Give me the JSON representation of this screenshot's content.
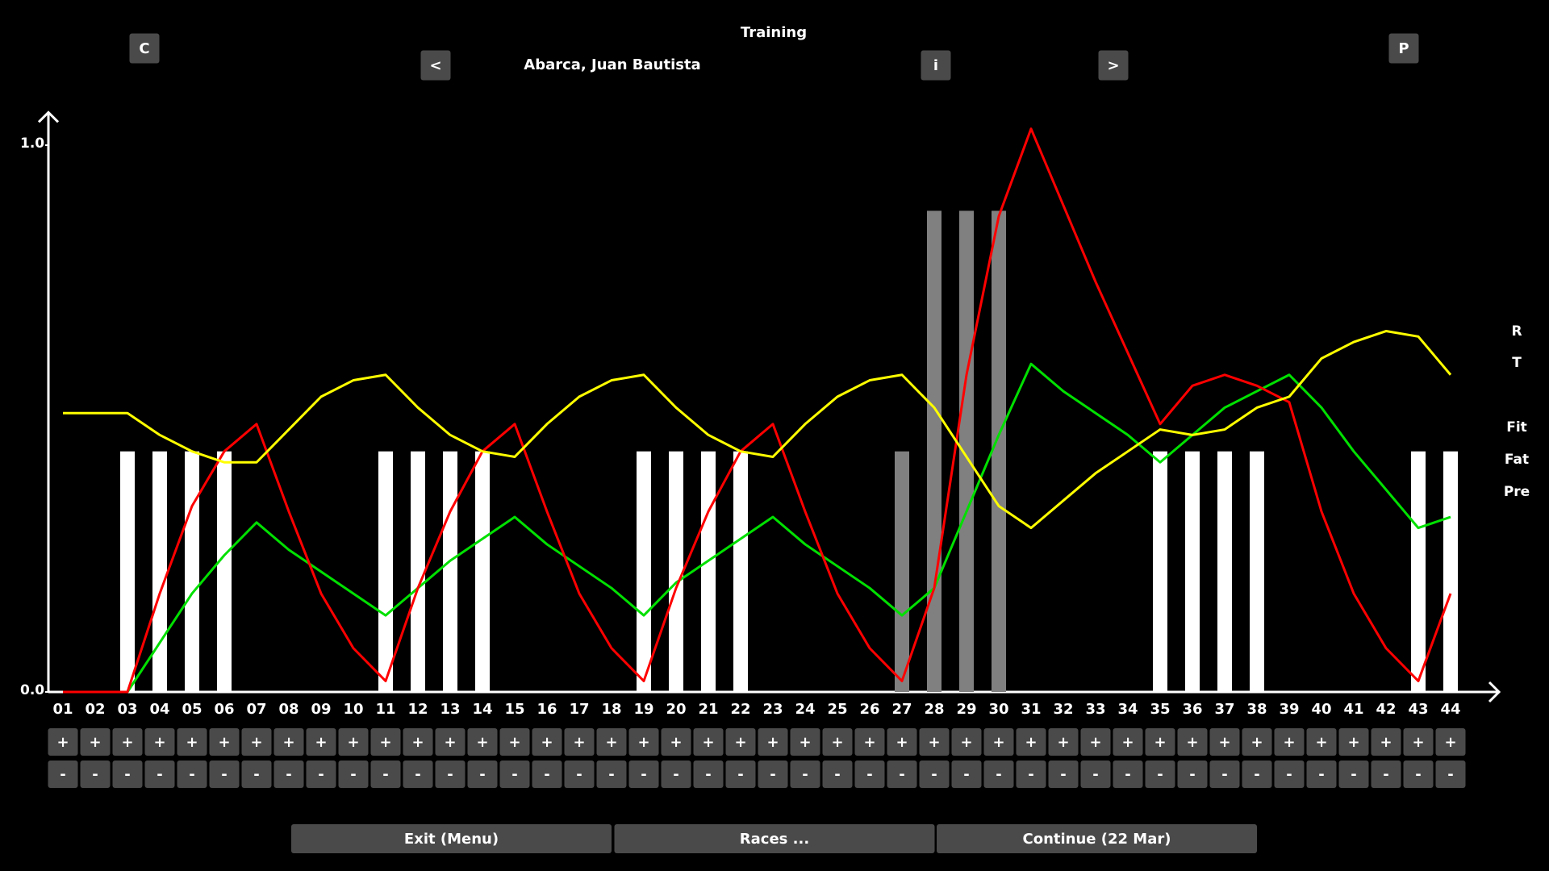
{
  "header": {
    "title": "Training",
    "rider": "Abarca, Juan Bautista",
    "buttons": {
      "c": "C",
      "prev": "<",
      "info": "i",
      "next": ">",
      "p": "P"
    }
  },
  "chart_data": {
    "type": "bar+line",
    "categories": [
      "01",
      "02",
      "03",
      "04",
      "05",
      "06",
      "07",
      "08",
      "09",
      "10",
      "11",
      "12",
      "13",
      "14",
      "15",
      "16",
      "17",
      "18",
      "19",
      "20",
      "21",
      "22",
      "23",
      "24",
      "25",
      "26",
      "27",
      "28",
      "29",
      "30",
      "31",
      "32",
      "33",
      "34",
      "35",
      "36",
      "37",
      "38",
      "39",
      "40",
      "41",
      "42",
      "43",
      "44"
    ],
    "ylim": [
      0,
      1.06
    ],
    "yticks": [
      {
        "value": 0,
        "label": "0.0"
      },
      {
        "value": 1,
        "label": "1.0"
      }
    ],
    "grid": false,
    "legend": "right",
    "series": [
      {
        "name": "R",
        "type": "bar",
        "color": "#808080",
        "values": [
          null,
          null,
          null,
          null,
          null,
          null,
          null,
          null,
          null,
          null,
          null,
          null,
          null,
          null,
          null,
          null,
          null,
          null,
          null,
          null,
          null,
          null,
          null,
          null,
          null,
          null,
          0.44,
          0.88,
          0.88,
          0.88,
          null,
          null,
          null,
          null,
          null,
          null,
          null,
          null,
          null,
          null,
          null,
          null,
          null,
          null
        ]
      },
      {
        "name": "T",
        "type": "bar",
        "color": "#ffffff",
        "values": [
          null,
          null,
          0.44,
          0.44,
          0.44,
          0.44,
          null,
          null,
          null,
          null,
          0.44,
          0.44,
          0.44,
          0.44,
          null,
          null,
          null,
          null,
          0.44,
          0.44,
          0.44,
          0.44,
          null,
          null,
          null,
          null,
          null,
          null,
          null,
          null,
          null,
          null,
          null,
          null,
          0.44,
          0.44,
          0.44,
          0.44,
          null,
          null,
          null,
          null,
          0.44,
          0.44
        ]
      },
      {
        "name": "Fit",
        "type": "line",
        "color": "#00e000",
        "values": [
          null,
          null,
          0.0,
          0.09,
          0.18,
          0.25,
          0.31,
          0.26,
          0.22,
          0.18,
          0.14,
          0.19,
          0.24,
          0.28,
          0.32,
          0.27,
          0.23,
          0.19,
          0.14,
          0.2,
          0.24,
          0.28,
          0.32,
          0.27,
          0.23,
          0.19,
          0.14,
          0.19,
          0.33,
          0.47,
          0.6,
          0.55,
          0.51,
          0.47,
          0.42,
          0.47,
          0.52,
          0.55,
          0.58,
          0.52,
          0.44,
          0.37,
          0.3,
          0.32
        ]
      },
      {
        "name": "Fat",
        "type": "line",
        "color": "#ff0000",
        "values": [
          0,
          0,
          0,
          0.18,
          0.34,
          0.44,
          0.49,
          0.33,
          0.18,
          0.08,
          0.02,
          0.19,
          0.33,
          0.44,
          0.49,
          0.33,
          0.18,
          0.08,
          0.02,
          0.19,
          0.33,
          0.44,
          0.49,
          0.33,
          0.18,
          0.08,
          0.02,
          0.19,
          0.58,
          0.87,
          1.03,
          0.89,
          0.75,
          0.62,
          0.49,
          0.56,
          0.58,
          0.56,
          0.53,
          0.33,
          0.18,
          0.08,
          0.02,
          0.18
        ]
      },
      {
        "name": "Pre",
        "type": "line",
        "color": "#ffff00",
        "values": [
          0.51,
          0.51,
          0.51,
          0.47,
          0.44,
          0.42,
          0.42,
          0.48,
          0.54,
          0.57,
          0.58,
          0.52,
          0.47,
          0.44,
          0.43,
          0.49,
          0.54,
          0.57,
          0.58,
          0.52,
          0.47,
          0.44,
          0.43,
          0.49,
          0.54,
          0.57,
          0.58,
          0.52,
          0.43,
          0.34,
          0.3,
          0.35,
          0.4,
          0.44,
          0.48,
          0.47,
          0.48,
          0.52,
          0.54,
          0.61,
          0.64,
          0.66,
          0.65,
          0.58
        ]
      }
    ]
  },
  "controls": {
    "increase": "+",
    "decrease": "-"
  },
  "footer": {
    "exit": "Exit (Menu)",
    "races": "Races ...",
    "continue": "Continue (22 Mar)"
  }
}
